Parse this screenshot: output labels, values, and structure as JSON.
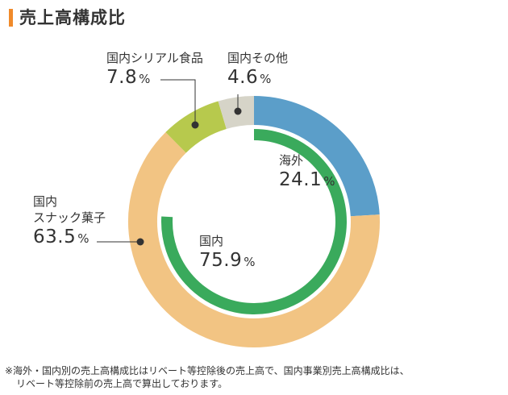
{
  "title": "売上高構成比",
  "chart_data": [
    {
      "type": "pie",
      "ring": "outer",
      "slices": [
        {
          "label": "海外",
          "value": 24.1,
          "color": "#5b9ec9"
        },
        {
          "label": "国内スナック菓子",
          "value": 63.5,
          "color": "#f2c483"
        },
        {
          "label": "国内シリアル食品",
          "value": 7.8,
          "color": "#b7c94d"
        },
        {
          "label": "国内その他",
          "value": 4.6,
          "color": "#d6d4c8"
        }
      ]
    },
    {
      "type": "pie",
      "ring": "inner",
      "slices": [
        {
          "label": "国内",
          "value": 75.9,
          "color": "#3aaa5c"
        },
        {
          "label": "海外",
          "value": 24.1,
          "color": "#ffffff"
        }
      ]
    }
  ],
  "labels": {
    "overseas": {
      "name": "海外",
      "value": "24.1",
      "unit": "%"
    },
    "domestic": {
      "name": "国内",
      "value": "75.9",
      "unit": "%"
    },
    "snack": {
      "name1": "国内",
      "name2": "スナック菓子",
      "value": "63.5",
      "unit": "%"
    },
    "cereal": {
      "name": "国内シリアル食品",
      "value": "7.8",
      "unit": "%"
    },
    "other": {
      "name": "国内その他",
      "value": "4.6",
      "unit": "%"
    }
  },
  "note": {
    "line1": "※海外・国内別の売上高構成比はリベート等控除後の売上高で、国内事業別売上高構成比は、",
    "line2": "リベート等控除前の売上高で算出しております。"
  },
  "colors": {
    "accent": "#f08a2b",
    "overseas": "#5b9ec9",
    "snack": "#f2c483",
    "cereal": "#b7c94d",
    "other": "#d6d4c8",
    "domestic": "#3aaa5c",
    "leader": "#333333"
  }
}
